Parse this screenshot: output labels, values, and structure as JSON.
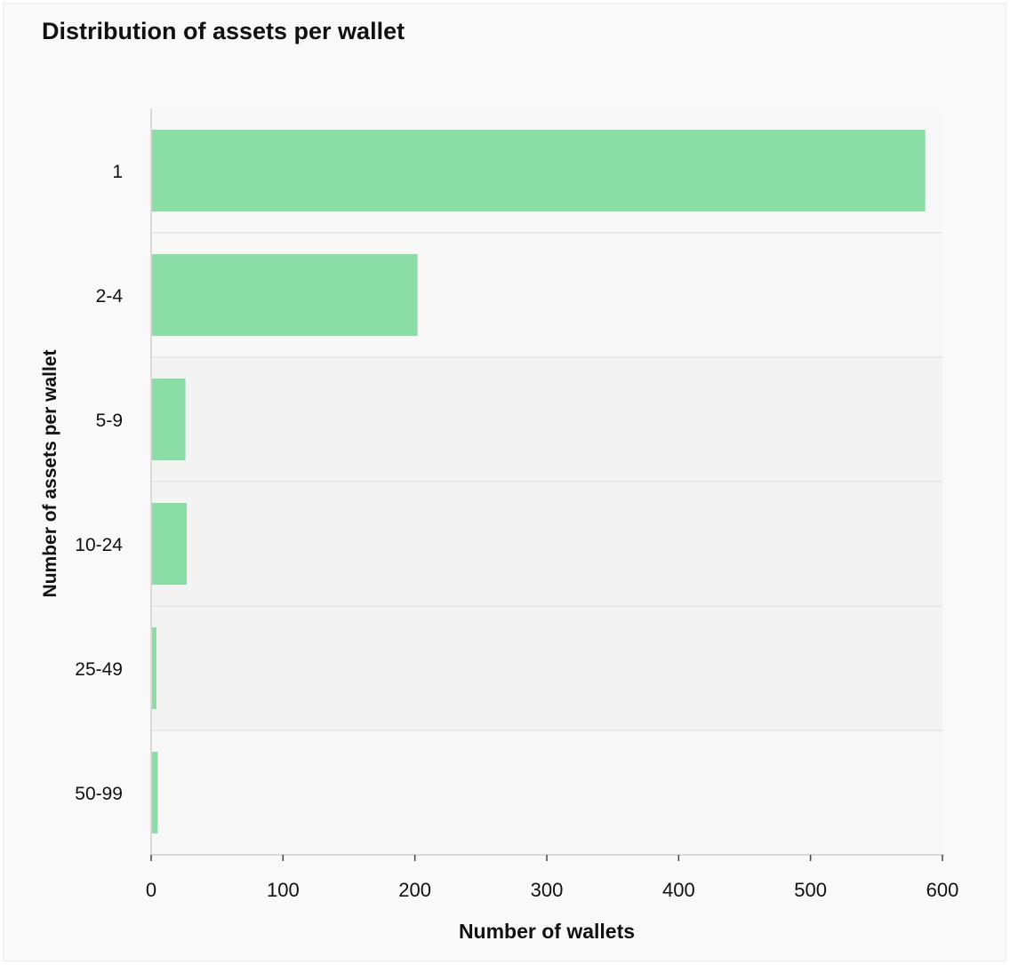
{
  "chart_data": {
    "type": "bar",
    "orientation": "horizontal",
    "title": "Distribution of assets per wallet",
    "xlabel": "Number of wallets",
    "ylabel": "Number of assets per wallet",
    "categories": [
      "1",
      "2-4",
      "5-9",
      "10-24",
      "25-49",
      "50-99"
    ],
    "values": [
      587,
      202,
      26,
      27,
      4,
      5
    ],
    "xlim": [
      0,
      600
    ],
    "xticks": [
      "0",
      "100",
      "200",
      "300",
      "400",
      "500",
      "600"
    ],
    "grid": false,
    "legend": "none",
    "colors": {
      "bar": "#8ade a5",
      "band_light": "#f8f8f8",
      "band_dark": "#f3f3f3",
      "axis": "#d9d9d9",
      "text": "#111111"
    }
  }
}
